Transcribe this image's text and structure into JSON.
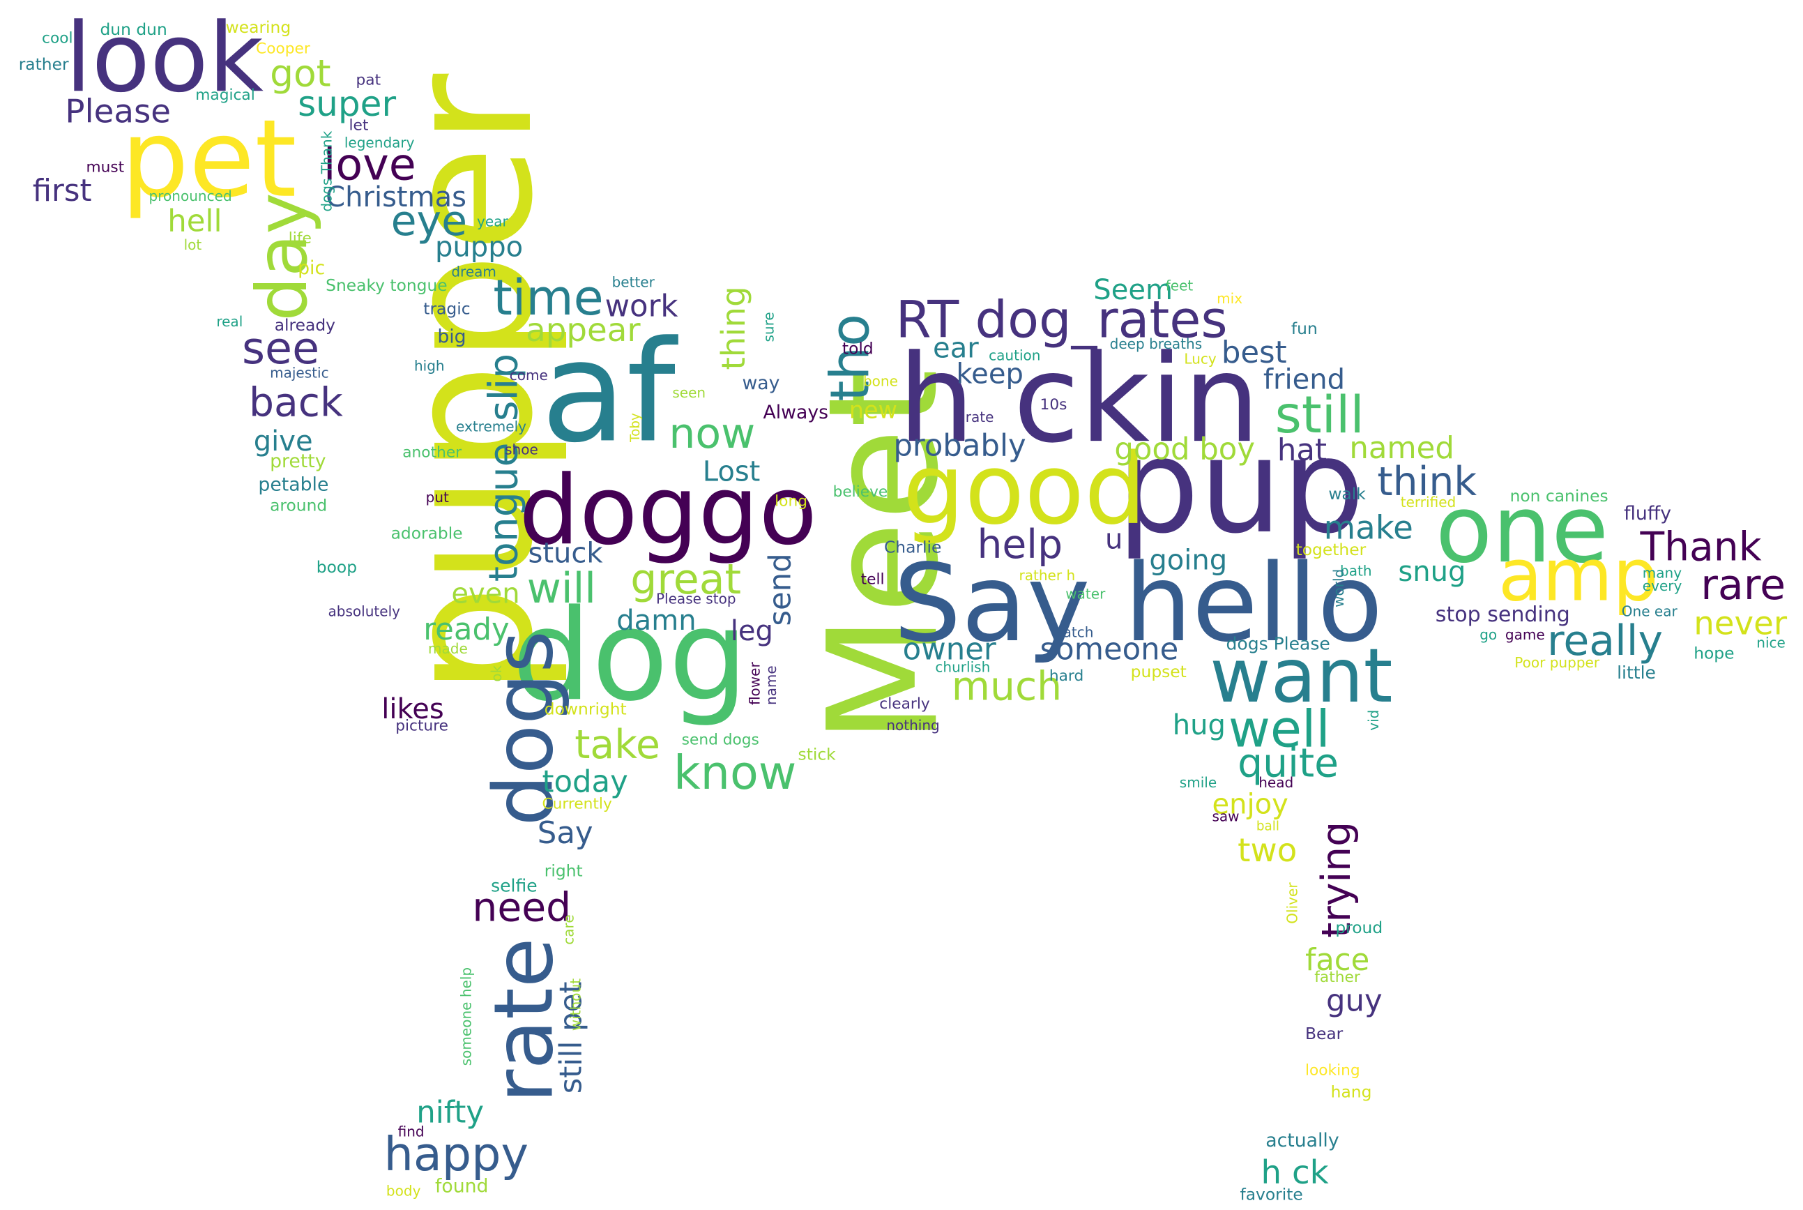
{
  "palette": [
    "#440154",
    "#46327e",
    "#365c8d",
    "#277f8e",
    "#1fa187",
    "#4ac16d",
    "#a0da39",
    "#d3e21b",
    "#fde725"
  ],
  "words": [
    {
      "text": "pupper",
      "color": "#d3e21b"
    },
    {
      "text": "Meet",
      "color": "#a0da39"
    },
    {
      "text": "af",
      "color": "#277f8e"
    },
    {
      "text": "pup",
      "color": "#46327e"
    },
    {
      "text": "h ckin",
      "color": "#46327e"
    },
    {
      "text": "dog",
      "color": "#4ac16d"
    },
    {
      "text": "Say hello",
      "color": "#365c8d"
    },
    {
      "text": "doggo",
      "color": "#440154"
    },
    {
      "text": "good",
      "color": "#d3e21b"
    },
    {
      "text": "one",
      "color": "#4ac16d"
    },
    {
      "text": "pet",
      "color": "#fde725"
    },
    {
      "text": "look",
      "color": "#46327e"
    },
    {
      "text": "rate",
      "color": "#365c8d"
    },
    {
      "text": "dogs",
      "color": "#365c8d"
    },
    {
      "text": "want",
      "color": "#277f8e"
    },
    {
      "text": "amp",
      "color": "#fde725"
    },
    {
      "text": "RT dog_rates",
      "color": "#46327e"
    },
    {
      "text": "day",
      "color": "#a0da39"
    },
    {
      "text": "time",
      "color": "#277f8e"
    },
    {
      "text": "still",
      "color": "#4ac16d"
    },
    {
      "text": "tho",
      "color": "#277f8e"
    },
    {
      "text": "rare",
      "color": "#440154"
    },
    {
      "text": "love",
      "color": "#440154"
    },
    {
      "text": "well",
      "color": "#1fa187"
    },
    {
      "text": "know",
      "color": "#4ac16d"
    },
    {
      "text": "help",
      "color": "#46327e"
    },
    {
      "text": "really",
      "color": "#277f8e"
    },
    {
      "text": "Thank",
      "color": "#440154"
    },
    {
      "text": "think",
      "color": "#365c8d"
    },
    {
      "text": "happy",
      "color": "#365c8d"
    },
    {
      "text": "see",
      "color": "#46327e"
    },
    {
      "text": "back",
      "color": "#46327e"
    },
    {
      "text": "now",
      "color": "#4ac16d"
    },
    {
      "text": "great",
      "color": "#a0da39"
    },
    {
      "text": "will",
      "color": "#4ac16d"
    },
    {
      "text": "need",
      "color": "#440154"
    },
    {
      "text": "slip",
      "color": "#277f8e"
    },
    {
      "text": "tongue",
      "color": "#277f8e"
    },
    {
      "text": "trying",
      "color": "#440154"
    },
    {
      "text": "quite",
      "color": "#1fa187"
    },
    {
      "text": "take",
      "color": "#a0da39"
    },
    {
      "text": "much",
      "color": "#a0da39"
    },
    {
      "text": "eye",
      "color": "#277f8e"
    },
    {
      "text": "got",
      "color": "#a0da39"
    },
    {
      "text": "super",
      "color": "#1fa187"
    },
    {
      "text": "Christmas",
      "color": "#365c8d"
    },
    {
      "text": "Please",
      "color": "#46327e"
    },
    {
      "text": "first",
      "color": "#46327e"
    },
    {
      "text": "hell",
      "color": "#a0da39"
    },
    {
      "text": "puppo",
      "color": "#277f8e"
    },
    {
      "text": "appear",
      "color": "#a0da39"
    },
    {
      "text": "work",
      "color": "#46327e"
    },
    {
      "text": "thing",
      "color": "#a0da39"
    },
    {
      "text": "keep",
      "color": "#365c8d"
    },
    {
      "text": "ear",
      "color": "#277f8e"
    },
    {
      "text": "best",
      "color": "#365c8d"
    },
    {
      "text": "friend",
      "color": "#365c8d"
    },
    {
      "text": "Seem",
      "color": "#1fa187"
    },
    {
      "text": "probably",
      "color": "#365c8d"
    },
    {
      "text": "good boy",
      "color": "#a0da39"
    },
    {
      "text": "hat",
      "color": "#46327e"
    },
    {
      "text": "named",
      "color": "#a0da39"
    },
    {
      "text": "give",
      "color": "#277f8e"
    },
    {
      "text": "Lost",
      "color": "#277f8e"
    },
    {
      "text": "stuck",
      "color": "#365c8d"
    },
    {
      "text": "even",
      "color": "#a0da39"
    },
    {
      "text": "send",
      "color": "#365c8d"
    },
    {
      "text": "make",
      "color": "#277f8e"
    },
    {
      "text": "snug",
      "color": "#1fa187"
    },
    {
      "text": "going",
      "color": "#277f8e"
    },
    {
      "text": "u",
      "color": "#46327e"
    },
    {
      "text": "never",
      "color": "#d3e21b"
    },
    {
      "text": "stop sending",
      "color": "#46327e"
    },
    {
      "text": "owner",
      "color": "#277f8e"
    },
    {
      "text": "someone",
      "color": "#365c8d"
    },
    {
      "text": "damn",
      "color": "#277f8e"
    },
    {
      "text": "leg",
      "color": "#46327e"
    },
    {
      "text": "ready",
      "color": "#4ac16d"
    },
    {
      "text": "likes",
      "color": "#440154"
    },
    {
      "text": "hug",
      "color": "#1fa187"
    },
    {
      "text": "today",
      "color": "#1fa187"
    },
    {
      "text": "Say",
      "color": "#365c8d"
    },
    {
      "text": "enjoy",
      "color": "#d3e21b"
    },
    {
      "text": "two",
      "color": "#d3e21b"
    },
    {
      "text": "still pet",
      "color": "#365c8d"
    },
    {
      "text": "nifty",
      "color": "#1fa187"
    },
    {
      "text": "face",
      "color": "#a0da39"
    },
    {
      "text": "guy",
      "color": "#46327e"
    },
    {
      "text": "h ck",
      "color": "#1fa187"
    },
    {
      "text": "fluffy",
      "color": "#46327e"
    },
    {
      "text": "dun dun",
      "color": "#1fa187"
    },
    {
      "text": "wearing",
      "color": "#d3e21b"
    },
    {
      "text": "cool",
      "color": "#1fa187"
    },
    {
      "text": "Cooper",
      "color": "#fde725"
    },
    {
      "text": "rather",
      "color": "#277f8e"
    },
    {
      "text": "magical",
      "color": "#1fa187"
    },
    {
      "text": "pat",
      "color": "#46327e"
    },
    {
      "text": "let",
      "color": "#46327e"
    },
    {
      "text": "legendary",
      "color": "#1fa187"
    },
    {
      "text": "must",
      "color": "#440154"
    },
    {
      "text": "dogs Thank",
      "color": "#1fa187"
    },
    {
      "text": "pronounced",
      "color": "#4ac16d"
    },
    {
      "text": "year",
      "color": "#1fa187"
    },
    {
      "text": "life",
      "color": "#a0da39"
    },
    {
      "text": "lot",
      "color": "#a0da39"
    },
    {
      "text": "pic",
      "color": "#d3e21b"
    },
    {
      "text": "dream",
      "color": "#277f8e"
    },
    {
      "text": "Sneaky tongue",
      "color": "#4ac16d"
    },
    {
      "text": "better",
      "color": "#277f8e"
    },
    {
      "text": "real",
      "color": "#1fa187"
    },
    {
      "text": "already",
      "color": "#46327e"
    },
    {
      "text": "tragic",
      "color": "#365c8d"
    },
    {
      "text": "big",
      "color": "#365c8d"
    },
    {
      "text": "majestic",
      "color": "#365c8d"
    },
    {
      "text": "high",
      "color": "#277f8e"
    },
    {
      "text": "come",
      "color": "#46327e"
    },
    {
      "text": "sure",
      "color": "#1fa187"
    },
    {
      "text": "way",
      "color": "#365c8d"
    },
    {
      "text": "seen",
      "color": "#a0da39"
    },
    {
      "text": "told",
      "color": "#440154"
    },
    {
      "text": "bone",
      "color": "#d3e21b"
    },
    {
      "text": "Always",
      "color": "#440154"
    },
    {
      "text": "new",
      "color": "#d3e21b"
    },
    {
      "text": "rate",
      "color": "#46327e"
    },
    {
      "text": "10s",
      "color": "#46327e"
    },
    {
      "text": "feet",
      "color": "#4ac16d"
    },
    {
      "text": "mix",
      "color": "#fde725"
    },
    {
      "text": "fun",
      "color": "#277f8e"
    },
    {
      "text": "deep breaths",
      "color": "#277f8e"
    },
    {
      "text": "caution",
      "color": "#1fa187"
    },
    {
      "text": "Lucy",
      "color": "#d3e21b"
    },
    {
      "text": "extremely",
      "color": "#277f8e"
    },
    {
      "text": "shoe",
      "color": "#46327e"
    },
    {
      "text": "another",
      "color": "#4ac16d"
    },
    {
      "text": "Toby",
      "color": "#d3e21b"
    },
    {
      "text": "pretty",
      "color": "#a0da39"
    },
    {
      "text": "petable",
      "color": "#277f8e"
    },
    {
      "text": "around",
      "color": "#4ac16d"
    },
    {
      "text": "put",
      "color": "#440154"
    },
    {
      "text": "long",
      "color": "#d3e21b"
    },
    {
      "text": "believe",
      "color": "#4ac16d"
    },
    {
      "text": "adorable",
      "color": "#4ac16d"
    },
    {
      "text": "Charlie",
      "color": "#365c8d"
    },
    {
      "text": "boop",
      "color": "#1fa187"
    },
    {
      "text": "tell",
      "color": "#440154"
    },
    {
      "text": "rather h",
      "color": "#d3e21b"
    },
    {
      "text": "water",
      "color": "#4ac16d"
    },
    {
      "text": "watch",
      "color": "#365c8d"
    },
    {
      "text": "walk",
      "color": "#277f8e"
    },
    {
      "text": "non canines",
      "color": "#4ac16d"
    },
    {
      "text": "terrified",
      "color": "#d3e21b"
    },
    {
      "text": "together",
      "color": "#d3e21b"
    },
    {
      "text": "bath",
      "color": "#1fa187"
    },
    {
      "text": "world",
      "color": "#277f8e"
    },
    {
      "text": "many",
      "color": "#1fa187"
    },
    {
      "text": "every",
      "color": "#1fa187"
    },
    {
      "text": "One ear",
      "color": "#277f8e"
    },
    {
      "text": "absolutely",
      "color": "#46327e"
    },
    {
      "text": "Please stop",
      "color": "#46327e"
    },
    {
      "text": "made",
      "color": "#a0da39"
    },
    {
      "text": "ok",
      "color": "#a0da39"
    },
    {
      "text": "flower",
      "color": "#440154"
    },
    {
      "text": "name",
      "color": "#46327e"
    },
    {
      "text": "churlish",
      "color": "#1fa187"
    },
    {
      "text": "hard",
      "color": "#277f8e"
    },
    {
      "text": "pupset",
      "color": "#d3e21b"
    },
    {
      "text": "dogs Please",
      "color": "#277f8e"
    },
    {
      "text": "go",
      "color": "#1fa187"
    },
    {
      "text": "game",
      "color": "#440154"
    },
    {
      "text": "hope",
      "color": "#1fa187"
    },
    {
      "text": "nice",
      "color": "#1fa187"
    },
    {
      "text": "Poor pupper",
      "color": "#d3e21b"
    },
    {
      "text": "little",
      "color": "#277f8e"
    },
    {
      "text": "downright",
      "color": "#d3e21b"
    },
    {
      "text": "send dogs",
      "color": "#4ac16d"
    },
    {
      "text": "clearly",
      "color": "#46327e"
    },
    {
      "text": "nothing",
      "color": "#46327e"
    },
    {
      "text": "picture",
      "color": "#46327e"
    },
    {
      "text": "stick",
      "color": "#a0da39"
    },
    {
      "text": "vid",
      "color": "#1fa187"
    },
    {
      "text": "smile",
      "color": "#1fa187"
    },
    {
      "text": "head",
      "color": "#440154"
    },
    {
      "text": "saw",
      "color": "#440154"
    },
    {
      "text": "Currently",
      "color": "#d3e21b"
    },
    {
      "text": "ball",
      "color": "#d3e21b"
    },
    {
      "text": "right",
      "color": "#4ac16d"
    },
    {
      "text": "selfie",
      "color": "#1fa187"
    },
    {
      "text": "Oliver",
      "color": "#d3e21b"
    },
    {
      "text": "care",
      "color": "#a0da39"
    },
    {
      "text": "someone help",
      "color": "#4ac16d"
    },
    {
      "text": "without",
      "color": "#a0da39"
    },
    {
      "text": "proud",
      "color": "#1fa187"
    },
    {
      "text": "father",
      "color": "#a0da39"
    },
    {
      "text": "Bear",
      "color": "#46327e"
    },
    {
      "text": "looking",
      "color": "#fde725"
    },
    {
      "text": "hang",
      "color": "#d3e21b"
    },
    {
      "text": "find",
      "color": "#440154"
    },
    {
      "text": "body",
      "color": "#d3e21b"
    },
    {
      "text": "found",
      "color": "#a0da39"
    },
    {
      "text": "actually",
      "color": "#277f8e"
    },
    {
      "text": "favorite",
      "color": "#277f8e"
    }
  ]
}
